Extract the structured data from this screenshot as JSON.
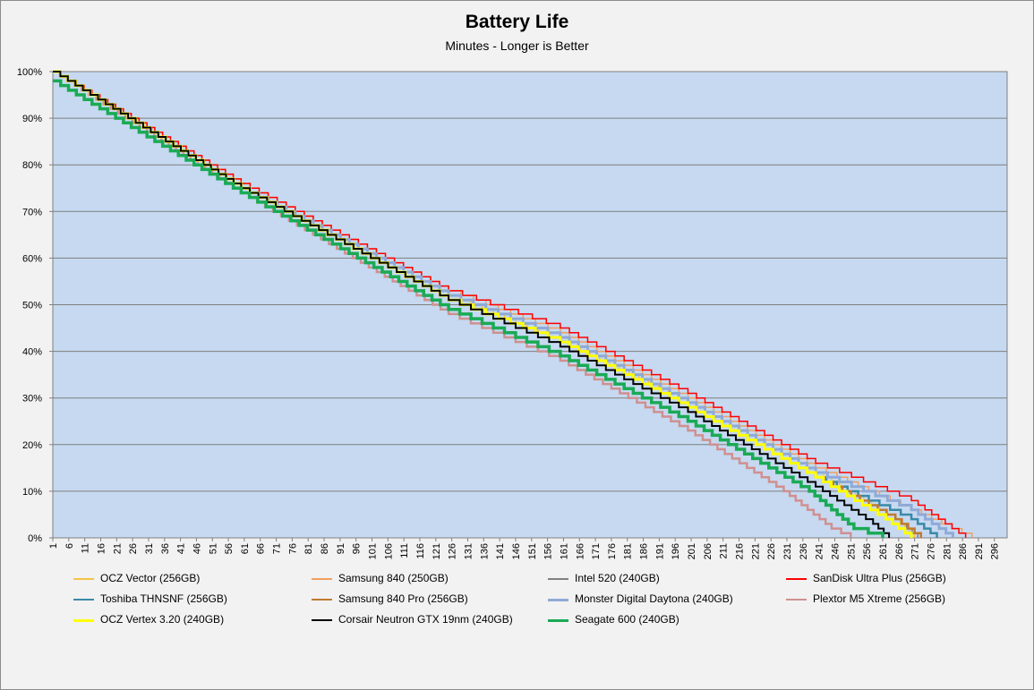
{
  "chart_data": {
    "type": "line",
    "title": "Battery Life",
    "subtitle": "Minutes - Longer is Better",
    "xlabel": "",
    "ylabel": "",
    "xlim": [
      1,
      300
    ],
    "ylim": [
      0,
      100
    ],
    "y_ticks": [
      "0%",
      "10%",
      "20%",
      "30%",
      "40%",
      "50%",
      "60%",
      "70%",
      "80%",
      "90%",
      "100%"
    ],
    "x_ticks": [
      "1",
      "6",
      "11",
      "16",
      "21",
      "26",
      "31",
      "36",
      "41",
      "46",
      "51",
      "56",
      "61",
      "66",
      "71",
      "76",
      "81",
      "86",
      "91",
      "96",
      "101",
      "106",
      "111",
      "116",
      "121",
      "126",
      "131",
      "136",
      "141",
      "146",
      "151",
      "156",
      "161",
      "166",
      "171",
      "176",
      "181",
      "186",
      "191",
      "196",
      "201",
      "206",
      "211",
      "216",
      "221",
      "226",
      "231",
      "236",
      "241",
      "246",
      "251",
      "256",
      "261",
      "266",
      "271",
      "276",
      "281",
      "286",
      "291",
      "296"
    ],
    "grid": true,
    "legend_position": "bottom",
    "series": [
      {
        "name": "OCZ Vector (256GB)",
        "color": "#f5c342",
        "width": 1.5,
        "points": [
          [
            1,
            100
          ],
          [
            60,
            75
          ],
          [
            125,
            52
          ],
          [
            160,
            42
          ],
          [
            200,
            29
          ],
          [
            240,
            14
          ],
          [
            265,
            4
          ],
          [
            271,
            0
          ]
        ]
      },
      {
        "name": "Samsung 840 (250GB)",
        "color": "#f0a060",
        "width": 1.5,
        "points": [
          [
            1,
            100
          ],
          [
            60,
            76
          ],
          [
            125,
            53
          ],
          [
            160,
            44
          ],
          [
            200,
            30
          ],
          [
            240,
            15
          ],
          [
            270,
            6
          ],
          [
            289,
            0
          ]
        ]
      },
      {
        "name": "Intel 520 (240GB)",
        "color": "#808080",
        "width": 1.5,
        "points": [
          [
            1,
            100
          ],
          [
            60,
            75
          ],
          [
            125,
            51
          ],
          [
            160,
            42
          ],
          [
            200,
            28
          ],
          [
            240,
            13
          ],
          [
            265,
            4
          ],
          [
            272,
            0
          ]
        ]
      },
      {
        "name": "SanDisk Ultra Plus (256GB)",
        "color": "#ff0000",
        "width": 1.5,
        "points": [
          [
            1,
            100
          ],
          [
            60,
            76
          ],
          [
            125,
            53
          ],
          [
            160,
            45
          ],
          [
            200,
            31
          ],
          [
            240,
            16
          ],
          [
            270,
            8
          ],
          [
            287,
            0
          ]
        ]
      },
      {
        "name": "Toshiba THNSNF  (256GB)",
        "color": "#3a8aa8",
        "width": 2.5,
        "points": [
          [
            1,
            100
          ],
          [
            60,
            75
          ],
          [
            125,
            51
          ],
          [
            160,
            42
          ],
          [
            200,
            28
          ],
          [
            240,
            13
          ],
          [
            270,
            4
          ],
          [
            278,
            0
          ]
        ]
      },
      {
        "name": "Samsung 840 Pro (256GB)",
        "color": "#c07a30",
        "width": 2.5,
        "points": [
          [
            1,
            100
          ],
          [
            60,
            75
          ],
          [
            125,
            51
          ],
          [
            160,
            42
          ],
          [
            200,
            28
          ],
          [
            240,
            13
          ],
          [
            265,
            4
          ],
          [
            273,
            0
          ]
        ]
      },
      {
        "name": "Monster Digital  Daytona (240GB)",
        "color": "#8faad6",
        "width": 3,
        "points": [
          [
            1,
            100
          ],
          [
            60,
            75
          ],
          [
            125,
            52
          ],
          [
            160,
            43
          ],
          [
            200,
            29
          ],
          [
            240,
            14
          ],
          [
            270,
            6
          ],
          [
            283,
            0
          ]
        ]
      },
      {
        "name": "Plextor M5 Xtreme (256GB)",
        "color": "#d09090",
        "width": 2.5,
        "points": [
          [
            1,
            100
          ],
          [
            60,
            74
          ],
          [
            125,
            48
          ],
          [
            160,
            38
          ],
          [
            200,
            23
          ],
          [
            230,
            10
          ],
          [
            245,
            2
          ],
          [
            251,
            0
          ]
        ]
      },
      {
        "name": "OCZ Vertex 3.20 (240GB)",
        "color": "#ffff00",
        "width": 3,
        "points": [
          [
            1,
            100
          ],
          [
            60,
            75
          ],
          [
            125,
            51
          ],
          [
            160,
            42
          ],
          [
            200,
            28
          ],
          [
            240,
            13
          ],
          [
            262,
            4
          ],
          [
            270,
            0
          ]
        ]
      },
      {
        "name": "Corsair Neutron  GTX 19nm (240GB)",
        "color": "#000000",
        "width": 2,
        "points": [
          [
            1,
            100
          ],
          [
            60,
            75
          ],
          [
            125,
            51
          ],
          [
            160,
            41
          ],
          [
            200,
            27
          ],
          [
            240,
            11
          ],
          [
            258,
            3
          ],
          [
            263,
            0
          ]
        ]
      },
      {
        "name": "Seagate 600 (240GB)",
        "color": "#1aaa55",
        "width": 3.5,
        "points": [
          [
            1,
            98
          ],
          [
            60,
            74
          ],
          [
            125,
            49
          ],
          [
            160,
            39
          ],
          [
            200,
            25
          ],
          [
            238,
            10
          ],
          [
            252,
            2
          ],
          [
            261,
            0
          ]
        ]
      }
    ]
  }
}
